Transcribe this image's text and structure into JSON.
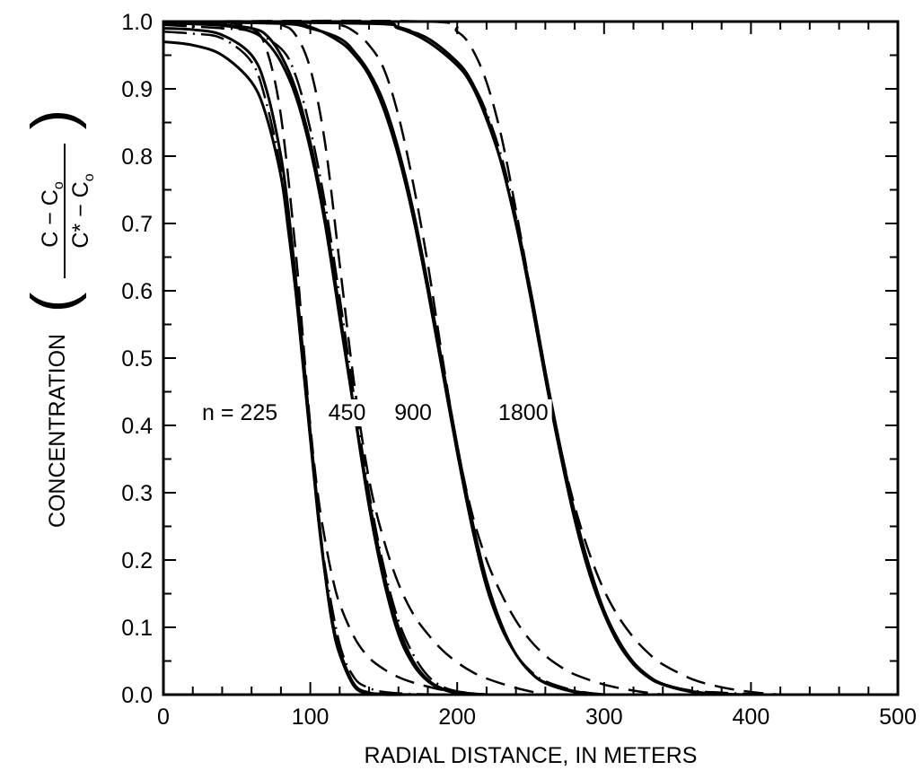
{
  "chart_data": {
    "type": "line",
    "xlabel": "RADIAL DISTANCE, IN METERS",
    "ylabel": "CONCENTRATION",
    "ylabel_fraction": {
      "numerator": "C − C",
      "numerator_sub": "o",
      "denominator": "C* − C",
      "denominator_sub": "o"
    },
    "xlim": [
      0,
      500
    ],
    "ylim": [
      0,
      1.0
    ],
    "xticks": [
      0,
      100,
      200,
      300,
      400,
      500
    ],
    "xtick_labels": [
      "0",
      "100",
      "200",
      "300",
      "400",
      "500"
    ],
    "yticks": [
      0.0,
      0.1,
      0.2,
      0.3,
      0.4,
      0.5,
      0.6,
      0.7,
      0.8,
      0.9,
      1.0
    ],
    "ytick_labels": [
      "0.0",
      "0.1",
      "0.2",
      "0.3",
      "0.4",
      "0.5",
      "0.6",
      "0.7",
      "0.8",
      "0.9",
      "1.0"
    ],
    "grid": false,
    "curve_labels": [
      {
        "text": "n = 225",
        "x": 52,
        "y": 0.42
      },
      {
        "text": "450",
        "x": 125,
        "y": 0.42
      },
      {
        "text": "900",
        "x": 170,
        "y": 0.42
      },
      {
        "text": "1800",
        "x": 245,
        "y": 0.42
      }
    ],
    "series": [
      {
        "style": "solid",
        "group": "n=225",
        "x": [
          0,
          20,
          40,
          60,
          70,
          80,
          85,
          90,
          95,
          100,
          105,
          110,
          115,
          120,
          130,
          140,
          150,
          170,
          200
        ],
        "y": [
          0.97,
          0.965,
          0.95,
          0.91,
          0.86,
          0.77,
          0.69,
          0.6,
          0.49,
          0.38,
          0.27,
          0.18,
          0.11,
          0.065,
          0.015,
          0.003,
          0.001,
          0.0,
          0.0
        ]
      },
      {
        "style": "solid",
        "group": "n=225",
        "x": [
          0,
          20,
          40,
          60,
          70,
          80,
          85,
          90,
          95,
          100,
          105,
          110,
          115,
          120,
          130,
          140,
          150,
          170
        ],
        "y": [
          0.99,
          0.988,
          0.98,
          0.95,
          0.9,
          0.8,
          0.72,
          0.62,
          0.51,
          0.39,
          0.28,
          0.18,
          0.105,
          0.06,
          0.012,
          0.002,
          0.0,
          0.0
        ]
      },
      {
        "style": "dash",
        "group": "n=225",
        "x": [
          0,
          40,
          60,
          70,
          80,
          90,
          95,
          100,
          105,
          110,
          115,
          120,
          130,
          140,
          150,
          160,
          170,
          180,
          190,
          200,
          220
        ],
        "y": [
          1.0,
          0.999,
          0.99,
          0.96,
          0.86,
          0.66,
          0.53,
          0.4,
          0.3,
          0.23,
          0.175,
          0.135,
          0.085,
          0.055,
          0.038,
          0.026,
          0.018,
          0.012,
          0.007,
          0.004,
          0.0
        ]
      },
      {
        "style": "dashdot",
        "group": "n=225",
        "x": [
          0,
          20,
          40,
          60,
          70,
          80,
          85,
          90,
          95,
          100,
          105,
          110,
          120,
          130,
          140,
          150,
          170,
          200
        ],
        "y": [
          0.985,
          0.982,
          0.975,
          0.94,
          0.88,
          0.78,
          0.7,
          0.6,
          0.49,
          0.38,
          0.28,
          0.19,
          0.075,
          0.025,
          0.01,
          0.004,
          0.001,
          0.0
        ]
      },
      {
        "style": "solid",
        "group": "n=450",
        "x": [
          0,
          40,
          60,
          70,
          80,
          90,
          100,
          110,
          120,
          130,
          140,
          150,
          160,
          170,
          180,
          190,
          200,
          220
        ],
        "y": [
          1.0,
          0.995,
          0.99,
          0.98,
          0.95,
          0.9,
          0.82,
          0.71,
          0.57,
          0.42,
          0.28,
          0.17,
          0.09,
          0.045,
          0.02,
          0.008,
          0.003,
          0.0
        ]
      },
      {
        "style": "solid",
        "group": "n=450",
        "x": [
          0,
          40,
          60,
          70,
          80,
          90,
          100,
          110,
          120,
          130,
          140,
          150,
          160,
          170,
          180,
          190,
          200,
          220
        ],
        "y": [
          0.998,
          0.994,
          0.985,
          0.97,
          0.94,
          0.89,
          0.81,
          0.7,
          0.56,
          0.42,
          0.29,
          0.18,
          0.1,
          0.05,
          0.022,
          0.009,
          0.003,
          0.0
        ]
      },
      {
        "style": "dash",
        "group": "n=450",
        "x": [
          0,
          60,
          80,
          90,
          100,
          110,
          120,
          130,
          140,
          150,
          160,
          170,
          180,
          190,
          200,
          210,
          220,
          240,
          260
        ],
        "y": [
          1.0,
          1.0,
          0.995,
          0.98,
          0.93,
          0.82,
          0.64,
          0.46,
          0.32,
          0.23,
          0.165,
          0.12,
          0.09,
          0.066,
          0.048,
          0.034,
          0.024,
          0.01,
          0.0
        ]
      },
      {
        "style": "dashdot",
        "group": "n=450",
        "x": [
          0,
          40,
          60,
          80,
          90,
          100,
          110,
          120,
          130,
          140,
          150,
          160,
          170,
          180,
          190,
          200,
          220
        ],
        "y": [
          0.995,
          0.99,
          0.985,
          0.96,
          0.92,
          0.84,
          0.73,
          0.59,
          0.44,
          0.3,
          0.19,
          0.11,
          0.06,
          0.028,
          0.012,
          0.005,
          0.0
        ]
      },
      {
        "style": "solid",
        "group": "n=900",
        "x": [
          0,
          80,
          100,
          120,
          130,
          140,
          150,
          160,
          170,
          180,
          190,
          200,
          210,
          220,
          230,
          240,
          250,
          260,
          280,
          300
        ],
        "y": [
          1.0,
          0.998,
          0.992,
          0.97,
          0.95,
          0.92,
          0.87,
          0.8,
          0.71,
          0.6,
          0.48,
          0.36,
          0.25,
          0.16,
          0.1,
          0.06,
          0.033,
          0.018,
          0.005,
          0.0
        ]
      },
      {
        "style": "solid",
        "group": "n=900",
        "x": [
          0,
          80,
          100,
          120,
          130,
          140,
          150,
          160,
          170,
          180,
          190,
          200,
          210,
          220,
          230,
          240,
          250,
          260,
          280,
          300
        ],
        "y": [
          1.0,
          0.997,
          0.99,
          0.975,
          0.955,
          0.925,
          0.88,
          0.81,
          0.72,
          0.61,
          0.49,
          0.37,
          0.26,
          0.17,
          0.105,
          0.06,
          0.033,
          0.017,
          0.004,
          0.0
        ]
      },
      {
        "style": "dash",
        "group": "n=900",
        "x": [
          0,
          100,
          120,
          130,
          140,
          150,
          160,
          170,
          180,
          190,
          200,
          210,
          220,
          230,
          240,
          250,
          260,
          270,
          280,
          300,
          320,
          340
        ],
        "y": [
          1.0,
          1.0,
          0.995,
          0.985,
          0.965,
          0.93,
          0.86,
          0.76,
          0.64,
          0.5,
          0.37,
          0.27,
          0.2,
          0.15,
          0.11,
          0.08,
          0.058,
          0.042,
          0.03,
          0.015,
          0.006,
          0.0
        ]
      },
      {
        "style": "dashdot",
        "group": "n=900",
        "x": [
          0,
          80,
          100,
          120,
          130,
          140,
          150,
          160,
          170,
          180,
          190,
          200,
          210,
          220,
          230,
          240,
          250,
          260,
          280,
          300
        ],
        "y": [
          1.0,
          0.997,
          0.99,
          0.975,
          0.955,
          0.92,
          0.87,
          0.8,
          0.71,
          0.6,
          0.48,
          0.36,
          0.25,
          0.16,
          0.1,
          0.06,
          0.035,
          0.02,
          0.006,
          0.0
        ]
      },
      {
        "style": "solid",
        "group": "n=1800",
        "x": [
          0,
          140,
          160,
          180,
          200,
          210,
          220,
          230,
          240,
          250,
          260,
          270,
          280,
          290,
          300,
          310,
          320,
          330,
          340,
          360,
          380,
          400
        ],
        "y": [
          1.0,
          0.998,
          0.99,
          0.975,
          0.94,
          0.91,
          0.86,
          0.79,
          0.7,
          0.59,
          0.47,
          0.36,
          0.26,
          0.18,
          0.12,
          0.075,
          0.045,
          0.026,
          0.015,
          0.004,
          0.001,
          0.0
        ]
      },
      {
        "style": "solid",
        "group": "n=1800",
        "x": [
          0,
          140,
          160,
          180,
          200,
          210,
          220,
          230,
          240,
          250,
          260,
          270,
          280,
          290,
          300,
          310,
          320,
          330,
          340,
          360,
          380
        ],
        "y": [
          1.0,
          0.997,
          0.99,
          0.97,
          0.935,
          0.905,
          0.855,
          0.79,
          0.7,
          0.6,
          0.48,
          0.37,
          0.27,
          0.19,
          0.125,
          0.08,
          0.048,
          0.028,
          0.016,
          0.005,
          0.0
        ]
      },
      {
        "style": "dash",
        "group": "n=1800",
        "x": [
          0,
          180,
          200,
          210,
          220,
          230,
          240,
          250,
          260,
          270,
          280,
          290,
          300,
          310,
          320,
          330,
          340,
          360,
          380,
          400,
          420
        ],
        "y": [
          1.0,
          1.0,
          0.985,
          0.96,
          0.91,
          0.83,
          0.72,
          0.6,
          0.48,
          0.37,
          0.28,
          0.21,
          0.155,
          0.115,
          0.085,
          0.062,
          0.045,
          0.023,
          0.011,
          0.004,
          0.0
        ]
      },
      {
        "style": "dashdot",
        "group": "n=1800",
        "x": [
          0,
          140,
          160,
          180,
          200,
          210,
          220,
          230,
          240,
          250,
          260,
          270,
          280,
          290,
          300,
          310,
          320,
          330,
          340,
          360,
          380,
          400,
          420
        ],
        "y": [
          1.0,
          0.998,
          0.992,
          0.975,
          0.94,
          0.91,
          0.865,
          0.8,
          0.71,
          0.6,
          0.48,
          0.36,
          0.26,
          0.18,
          0.12,
          0.075,
          0.045,
          0.026,
          0.015,
          0.006,
          0.003,
          0.001,
          0.0
        ]
      }
    ]
  }
}
